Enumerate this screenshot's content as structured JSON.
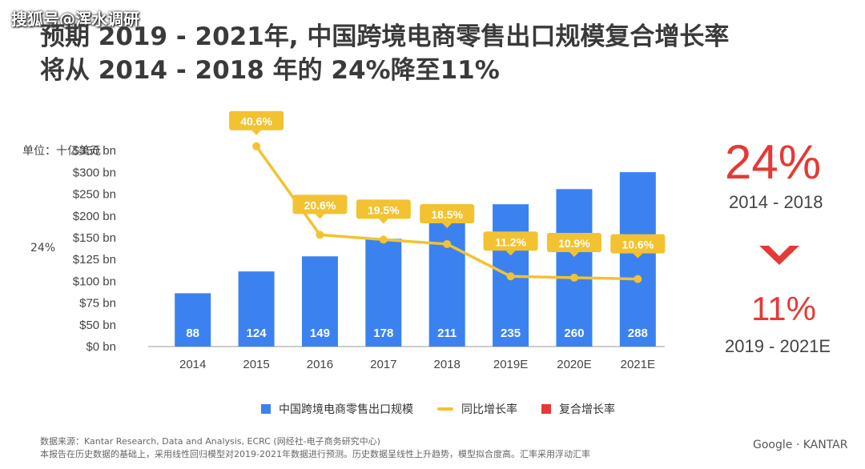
{
  "watermark": "搜狐号@浑水调研",
  "title_line1": "预期 2019 - 2021年, 中国跨境电商零售出口规模复合增长率",
  "title_line2": "将从 2014 - 2018 年的 24%降至11%",
  "unit_label": "单位：十亿美元",
  "side_label": "24%",
  "chart_data": {
    "type": "bar",
    "categories": [
      "2014",
      "2015",
      "2016",
      "2017",
      "2018",
      "2019E",
      "2020E",
      "2021E"
    ],
    "series": [
      {
        "name": "中国跨境电商零售出口规模",
        "type": "bar",
        "values": [
          88,
          124,
          149,
          178,
          211,
          235,
          260,
          288
        ],
        "color": "#3b82f0"
      },
      {
        "name": "同比增长率",
        "type": "line",
        "values": [
          null,
          40.6,
          20.6,
          19.5,
          18.5,
          11.2,
          10.9,
          10.6
        ],
        "labels": [
          "",
          "40.6%",
          "20.6%",
          "19.5%",
          "18.5%",
          "11.2%",
          "10.9%",
          "10.6%"
        ],
        "color": "#f2c230"
      }
    ],
    "y_ticks": [
      "$0 bn",
      "$50 bn",
      "$75 bn",
      "$100 bn",
      "$125 bn",
      "$150 bn",
      "$200 bn",
      "$250 bn",
      "$300 bn",
      "$350 bn"
    ],
    "ylim": [
      0,
      350
    ]
  },
  "aside": {
    "cagr_past": "24%",
    "cagr_past_range": "2014 - 2018",
    "cagr_future": "11%",
    "cagr_future_range": "2019 - 2021E"
  },
  "legend": {
    "bar_label": "中国跨境电商零售出口规模",
    "line_label": "同比增长率",
    "red_label": "复合增长率"
  },
  "source_line1": "数据来源：Kantar Research, Data and Analysis, ECRC (网经社-电子商务研究中心)",
  "source_line2": "本报告在历史数据的基础上，采用线性回归模型对2019-2021年数据进行预测。历史数据呈线性上升趋势，模型拟合度高。汇率采用浮动汇率",
  "brand": "Google · KANTAR"
}
